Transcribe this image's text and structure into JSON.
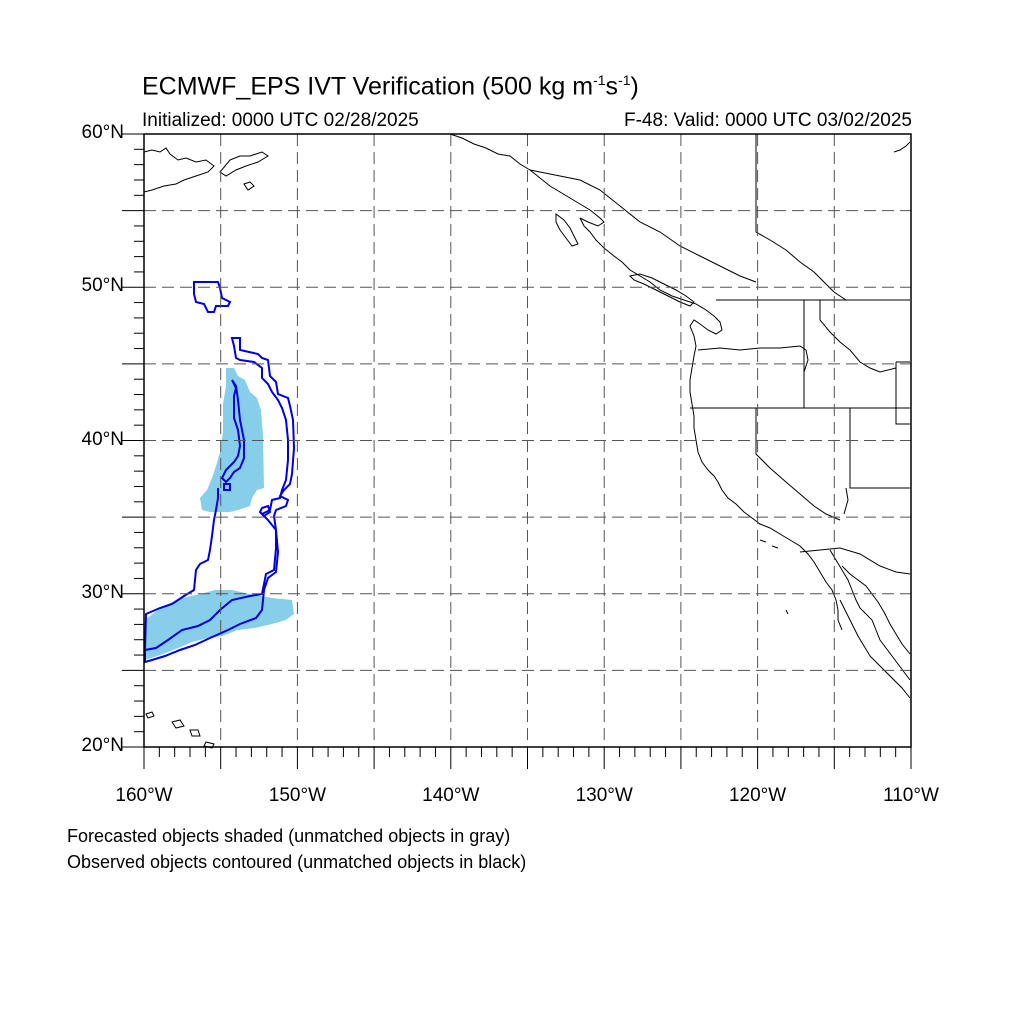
{
  "figure": {
    "title_main": "ECMWF_EPS IVT Verification (500 kg m",
    "title_sup1": "-1",
    "title_mid": "s",
    "title_sup2": "-1",
    "title_end": ")",
    "init_label": "Initialized: 0000 UTC 02/28/2025",
    "valid_label": "F-48: Valid: 0000 UTC 03/02/2025",
    "footnote_1": "Forecasted objects shaded (unmatched objects in gray)",
    "footnote_2": "Observed objects contoured (unmatched objects in black)"
  },
  "map": {
    "lon_range": [
      -160,
      -110
    ],
    "lat_range": [
      20,
      60
    ],
    "lat_ticks": [
      {
        "lat": 60,
        "label": "60°N"
      },
      {
        "lat": 50,
        "label": "50°N"
      },
      {
        "lat": 40,
        "label": "40°N"
      },
      {
        "lat": 30,
        "label": "30°N"
      },
      {
        "lat": 20,
        "label": "20°N"
      }
    ],
    "lon_ticks": [
      {
        "lon": -160,
        "label": "160°W"
      },
      {
        "lon": -150,
        "label": "150°W"
      },
      {
        "lon": -140,
        "label": "140°W"
      },
      {
        "lon": -130,
        "label": "130°W"
      },
      {
        "lon": -120,
        "label": "120°W"
      },
      {
        "lon": -110,
        "label": "110°W"
      }
    ],
    "gridlines": "dashed, every 5°",
    "colors": {
      "forecast_fill": "#87ceeb",
      "observed_contour": "#0000e0",
      "coastline": "#000000",
      "grid": "#555555"
    }
  }
}
